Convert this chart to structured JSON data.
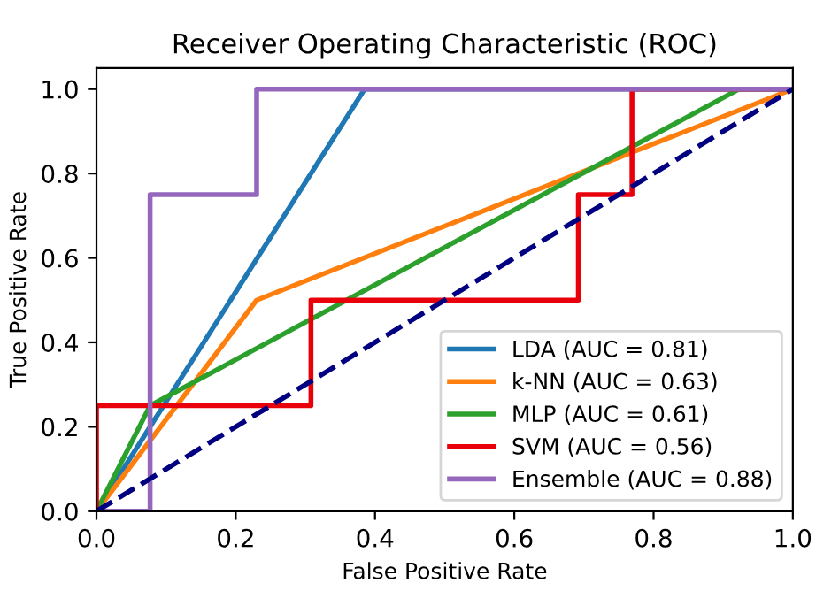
{
  "chart_data": {
    "type": "line",
    "title": "Receiver Operating Characteristic (ROC)",
    "xlabel": "False Positive Rate",
    "ylabel": "True Positive Rate",
    "xlim": [
      0,
      1
    ],
    "ylim": [
      0,
      1.05
    ],
    "xticks": [
      {
        "value": 0,
        "label": "0.0"
      },
      0.2,
      0.4,
      0.6,
      0.8,
      {
        "value": 1,
        "label": "1.0"
      }
    ],
    "yticks": [
      {
        "value": 0,
        "label": "0.0"
      },
      0.2,
      0.4,
      0.6,
      0.8,
      {
        "value": 1,
        "label": "1.0"
      }
    ],
    "grid": false,
    "legend": "bottom right",
    "marker": "none",
    "series": [
      {
        "name": "LDA (AUC = 0.81)",
        "color": "#1f77b4",
        "x": [
          0,
          0.385,
          1
        ],
        "values": [
          0,
          1,
          1
        ]
      },
      {
        "name": "k-NN (AUC = 0.63)",
        "color": "#ff7f0e",
        "x": [
          0,
          0.23,
          1
        ],
        "values": [
          0,
          0.5,
          1
        ]
      },
      {
        "name": "MLP (AUC = 0.61)",
        "color": "#2ca02c",
        "x": [
          0,
          0.077,
          0.923,
          1
        ],
        "values": [
          0,
          0.25,
          1,
          1
        ]
      },
      {
        "name": "SVM (AUC = 0.56)",
        "color": "#e8000b",
        "x": [
          0,
          0,
          0.308,
          0.308,
          0.692,
          0.692,
          0.769,
          0.769,
          1
        ],
        "values": [
          0,
          0.25,
          0.25,
          0.5,
          0.5,
          0.75,
          0.75,
          1,
          1
        ]
      },
      {
        "name": "Ensemble (AUC = 0.88)",
        "color": "#9467bd",
        "x": [
          0,
          0.077,
          0.077,
          0.23,
          0.23,
          1
        ],
        "values": [
          0,
          0,
          0.75,
          0.75,
          1,
          1
        ]
      },
      {
        "color": "#000080",
        "line_style": "dashed",
        "x": [
          0,
          1
        ],
        "values": [
          0,
          1
        ]
      }
    ]
  }
}
